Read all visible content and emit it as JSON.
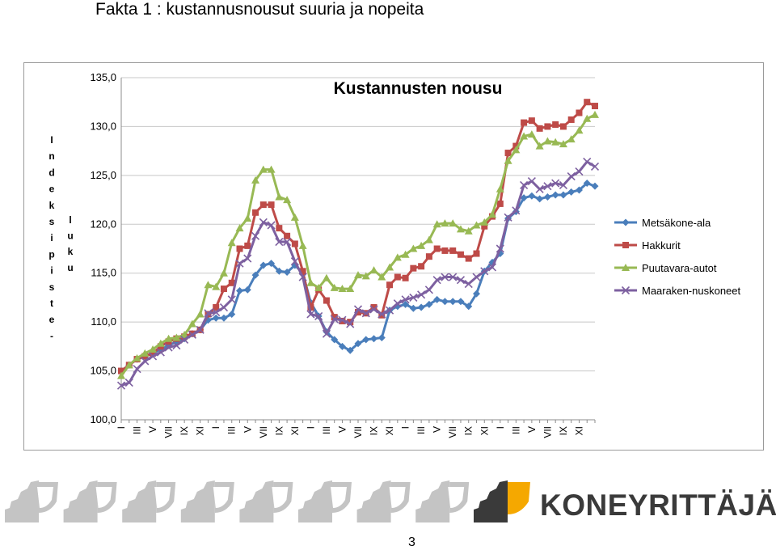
{
  "slide": {
    "title": "Fakta 1 : kustannusnousut suuria ja nopeita",
    "page_number": "3"
  },
  "logo": {
    "brand_text": "KONEYRITTÄJÄT"
  },
  "colors": {
    "background": "#ffffff",
    "frame": "#9a9a9a",
    "grid": "#c8c8c8",
    "logo_gray": "#c4c4c4",
    "logo_dark": "#3a3a3a",
    "logo_orange": "#f5a800"
  },
  "chart_data": {
    "type": "line",
    "title": "Kustannusten nousu",
    "ylabel_1": "Indeksipiste-",
    "ylabel_2": "luku",
    "ylim": [
      100,
      135
    ],
    "y_ticks": [
      "100,0",
      "105,0",
      "110,0",
      "115,0",
      "120,0",
      "125,0",
      "130,0",
      "135,0"
    ],
    "grid": "horizontal",
    "legend_position": "right",
    "x_tick_labels": [
      "I",
      "III",
      "V",
      "VII",
      "IX",
      "XI",
      "I",
      "III",
      "V",
      "VII",
      "IX",
      "XI",
      "I",
      "III",
      "V",
      "VII",
      "IX",
      "XI",
      "I",
      "III",
      "V",
      "VII",
      "IX",
      "XI",
      "I",
      "III",
      "V",
      "VII",
      "IX",
      "XI"
    ],
    "x_tick_every": 2,
    "series": [
      {
        "name": "Metsäkone-ala",
        "color": "#4a7ebb",
        "marker": "diamond",
        "values": [
          105.0,
          105.6,
          106.2,
          106.5,
          106.8,
          107.2,
          107.6,
          108.0,
          108.3,
          108.8,
          109.2,
          110.2,
          110.4,
          110.4,
          110.8,
          113.2,
          113.3,
          114.8,
          115.8,
          116.0,
          115.2,
          115.1,
          115.8,
          115.0,
          112.0,
          110.6,
          109.0,
          108.2,
          107.5,
          107.1,
          107.8,
          108.2,
          108.3,
          108.4,
          111.2,
          111.6,
          111.8,
          111.4,
          111.5,
          111.8,
          112.3,
          112.1,
          112.1,
          112.1,
          111.6,
          112.9,
          115.2,
          116.1,
          117.0,
          120.6,
          121.3,
          122.7,
          122.9,
          122.6,
          122.8,
          123.0,
          123.0,
          123.3,
          123.5,
          124.2,
          123.9
        ]
      },
      {
        "name": "Hakkurit",
        "color": "#be4b48",
        "marker": "square",
        "values": [
          105.0,
          105.6,
          106.2,
          106.5,
          106.8,
          107.5,
          108.0,
          108.3,
          108.5,
          108.8,
          109.2,
          110.8,
          111.5,
          113.4,
          114.0,
          117.5,
          117.8,
          121.2,
          122.0,
          122.0,
          119.6,
          118.8,
          118.0,
          115.2,
          111.5,
          113.3,
          112.2,
          110.5,
          110.1,
          110.0,
          111.0,
          110.9,
          111.5,
          110.7,
          113.8,
          114.6,
          114.5,
          115.5,
          115.7,
          116.7,
          117.5,
          117.3,
          117.3,
          116.9,
          116.5,
          117.0,
          119.8,
          120.8,
          122.1,
          127.3,
          128.0,
          130.4,
          130.6,
          129.8,
          130.0,
          130.2,
          130.0,
          130.7,
          131.4,
          132.5,
          132.1
        ]
      },
      {
        "name": "Puutavara-autot",
        "color": "#98b954",
        "marker": "triangle",
        "values": [
          104.5,
          105.6,
          106.3,
          106.8,
          107.2,
          107.8,
          108.3,
          108.4,
          108.7,
          109.8,
          110.8,
          113.8,
          113.6,
          115.0,
          118.1,
          119.6,
          120.6,
          124.5,
          125.6,
          125.6,
          122.8,
          122.5,
          120.7,
          117.8,
          114.0,
          113.5,
          114.5,
          113.5,
          113.4,
          113.4,
          114.8,
          114.7,
          115.3,
          114.6,
          115.6,
          116.6,
          116.9,
          117.5,
          117.8,
          118.4,
          120.0,
          120.1,
          120.1,
          119.5,
          119.3,
          119.9,
          120.2,
          121.0,
          123.6,
          126.5,
          127.6,
          129.0,
          129.2,
          128.0,
          128.5,
          128.4,
          128.2,
          128.7,
          129.6,
          130.8,
          131.2
        ]
      },
      {
        "name": "Maaraken-nuskoneet",
        "color": "#7d60a0",
        "marker": "x",
        "values": [
          103.5,
          103.8,
          105.2,
          106.0,
          106.5,
          106.9,
          107.4,
          107.6,
          108.2,
          108.7,
          109.2,
          110.9,
          111.0,
          111.5,
          112.3,
          116.0,
          116.5,
          118.8,
          120.2,
          119.9,
          118.2,
          118.2,
          116.2,
          114.6,
          110.8,
          110.6,
          108.8,
          110.3,
          110.2,
          109.8,
          111.3,
          110.9,
          111.3,
          110.8,
          111.2,
          111.9,
          112.3,
          112.5,
          112.8,
          113.3,
          114.3,
          114.6,
          114.6,
          114.3,
          113.9,
          114.6,
          115.2,
          115.6,
          117.5,
          120.7,
          121.4,
          124.0,
          124.4,
          123.6,
          123.9,
          124.2,
          124.0,
          124.9,
          125.4,
          126.4,
          125.9
        ]
      }
    ]
  }
}
